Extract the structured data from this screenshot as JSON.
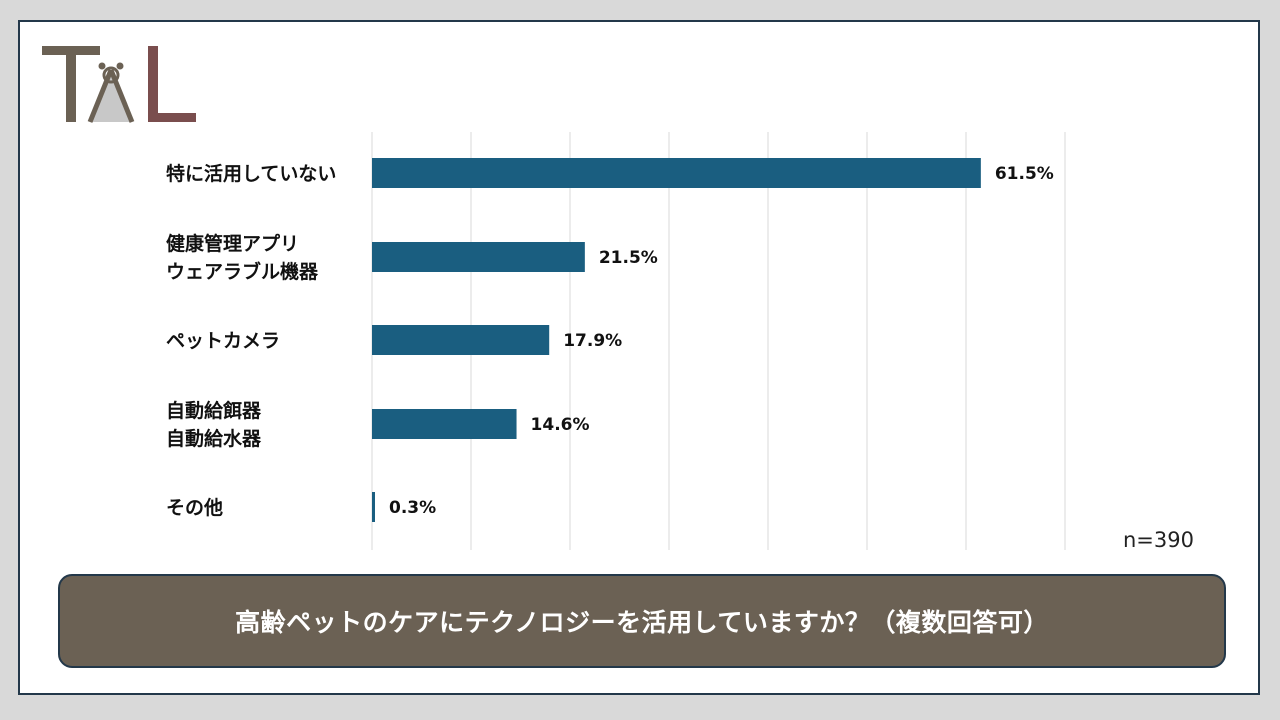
{
  "colors": {
    "bar": "#1a5e80",
    "grid": "#d9d9d9",
    "question_bg": "#6b6154",
    "logo_dark": "#6b6154",
    "logo_accent": "#7a4e4e"
  },
  "logo": {
    "icon": "tal-logo"
  },
  "chart_data": {
    "type": "bar",
    "orientation": "horizontal",
    "categories": [
      [
        "特に活用していない"
      ],
      [
        "健康管理アプリ",
        "ウェアラブル機器"
      ],
      [
        "ペットカメラ"
      ],
      [
        "自動給餌器",
        "自動給水器"
      ],
      [
        "その他"
      ]
    ],
    "values": [
      61.5,
      21.5,
      17.9,
      14.6,
      0.3
    ],
    "value_labels": [
      "61.5%",
      "21.5%",
      "17.9%",
      "14.6%",
      "0.3%"
    ],
    "xlim": [
      0,
      70
    ],
    "grid": true,
    "gridline_step": 10
  },
  "note": "n=390",
  "question": "高齢ペットのケアにテクノロジーを活用していますか？（複数回答可）"
}
